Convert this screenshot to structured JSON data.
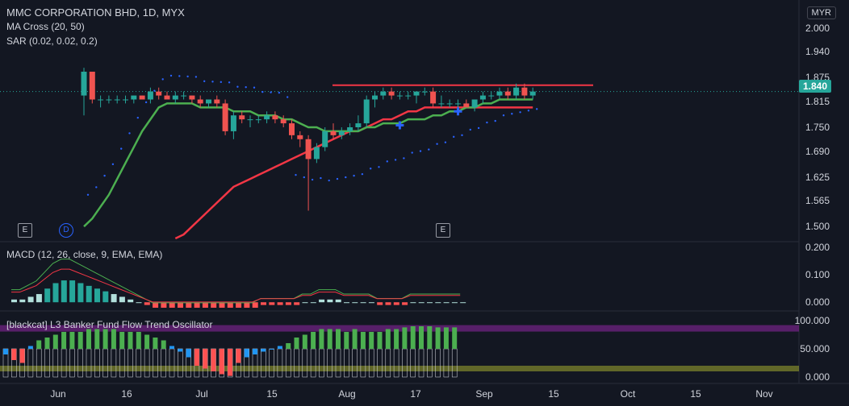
{
  "header": {
    "title": "MMC CORPORATION BHD, 1D, MYX",
    "ind1": "MA Cross (20, 50)",
    "ind2": "SAR (0.02, 0.02, 0.2)",
    "currency": "MYR",
    "last_price": "1.840"
  },
  "macd_label": "MACD (12, 26, close, 9, EMA, EMA)",
  "osc_label": "[blackcat] L3 Banker Fund Flow Trend Oscillator",
  "price_axis": [
    "2.000",
    "1.940",
    "1.875",
    "1.815",
    "1.750",
    "1.690",
    "1.625",
    "1.565",
    "1.500"
  ],
  "macd_axis": [
    "0.200",
    "0.100",
    "0.000"
  ],
  "osc_axis": [
    "100.000",
    "50.000",
    "0.000"
  ],
  "time_axis": [
    "Jun",
    "16",
    "Jul",
    "15",
    "Aug",
    "17",
    "Sep",
    "15",
    "Oct",
    "15",
    "Nov"
  ],
  "badges": [
    "E",
    "D",
    "E"
  ],
  "colors": {
    "up": "#26a69a",
    "down": "#ef5350",
    "ma_fast": "#4caf50",
    "ma_slow": "#f23645",
    "sar": "#2962ff",
    "hline": "#f23645"
  },
  "chart_data": {
    "type": "candlestick",
    "price_ylim": [
      1.47,
      2.03
    ],
    "resistance": 1.856,
    "candles": [
      [
        1.83,
        1.9,
        1.78,
        1.89
      ],
      [
        1.89,
        1.89,
        1.81,
        1.82
      ],
      [
        1.82,
        1.83,
        1.8,
        1.82
      ],
      [
        1.82,
        1.83,
        1.81,
        1.82
      ],
      [
        1.82,
        1.83,
        1.81,
        1.82
      ],
      [
        1.82,
        1.83,
        1.81,
        1.82
      ],
      [
        1.82,
        1.83,
        1.81,
        1.83
      ],
      [
        1.83,
        1.83,
        1.82,
        1.82
      ],
      [
        1.82,
        1.85,
        1.81,
        1.84
      ],
      [
        1.84,
        1.85,
        1.82,
        1.83
      ],
      [
        1.83,
        1.84,
        1.82,
        1.82
      ],
      [
        1.82,
        1.84,
        1.81,
        1.83
      ],
      [
        1.83,
        1.84,
        1.82,
        1.83
      ],
      [
        1.83,
        1.83,
        1.81,
        1.82
      ],
      [
        1.82,
        1.83,
        1.8,
        1.81
      ],
      [
        1.81,
        1.82,
        1.8,
        1.82
      ],
      [
        1.82,
        1.83,
        1.8,
        1.81
      ],
      [
        1.81,
        1.82,
        1.73,
        1.74
      ],
      [
        1.74,
        1.79,
        1.72,
        1.78
      ],
      [
        1.78,
        1.79,
        1.76,
        1.77
      ],
      [
        1.77,
        1.78,
        1.75,
        1.77
      ],
      [
        1.77,
        1.78,
        1.76,
        1.77
      ],
      [
        1.77,
        1.79,
        1.76,
        1.78
      ],
      [
        1.78,
        1.79,
        1.76,
        1.77
      ],
      [
        1.77,
        1.78,
        1.75,
        1.76
      ],
      [
        1.76,
        1.77,
        1.72,
        1.73
      ],
      [
        1.73,
        1.74,
        1.7,
        1.72
      ],
      [
        1.72,
        1.73,
        1.54,
        1.67
      ],
      [
        1.67,
        1.71,
        1.66,
        1.7
      ],
      [
        1.7,
        1.75,
        1.69,
        1.74
      ],
      [
        1.74,
        1.76,
        1.72,
        1.73
      ],
      [
        1.73,
        1.75,
        1.72,
        1.74
      ],
      [
        1.74,
        1.76,
        1.73,
        1.75
      ],
      [
        1.75,
        1.78,
        1.74,
        1.76
      ],
      [
        1.76,
        1.83,
        1.75,
        1.82
      ],
      [
        1.82,
        1.84,
        1.8,
        1.83
      ],
      [
        1.83,
        1.85,
        1.82,
        1.84
      ],
      [
        1.84,
        1.85,
        1.82,
        1.83
      ],
      [
        1.83,
        1.84,
        1.82,
        1.83
      ],
      [
        1.83,
        1.84,
        1.82,
        1.83
      ],
      [
        1.83,
        1.84,
        1.81,
        1.84
      ],
      [
        1.84,
        1.85,
        1.83,
        1.84
      ],
      [
        1.84,
        1.85,
        1.8,
        1.81
      ],
      [
        1.81,
        1.83,
        1.8,
        1.81
      ],
      [
        1.81,
        1.82,
        1.8,
        1.81
      ],
      [
        1.81,
        1.82,
        1.8,
        1.81
      ],
      [
        1.81,
        1.82,
        1.8,
        1.8
      ],
      [
        1.8,
        1.82,
        1.79,
        1.82
      ],
      [
        1.82,
        1.84,
        1.81,
        1.83
      ],
      [
        1.83,
        1.84,
        1.82,
        1.83
      ],
      [
        1.83,
        1.85,
        1.82,
        1.84
      ],
      [
        1.84,
        1.85,
        1.82,
        1.83
      ],
      [
        1.83,
        1.86,
        1.82,
        1.85
      ],
      [
        1.85,
        1.86,
        1.82,
        1.83
      ],
      [
        1.83,
        1.85,
        1.82,
        1.84
      ]
    ],
    "ma_fast": [
      1.5,
      1.52,
      1.55,
      1.58,
      1.62,
      1.66,
      1.7,
      1.74,
      1.77,
      1.8,
      1.81,
      1.81,
      1.81,
      1.81,
      1.8,
      1.8,
      1.8,
      1.8,
      1.79,
      1.79,
      1.79,
      1.78,
      1.78,
      1.78,
      1.77,
      1.77,
      1.76,
      1.75,
      1.75,
      1.74,
      1.74,
      1.74,
      1.74,
      1.74,
      1.75,
      1.75,
      1.76,
      1.76,
      1.76,
      1.77,
      1.77,
      1.77,
      1.78,
      1.78,
      1.79,
      1.79,
      1.8,
      1.8,
      1.81,
      1.81,
      1.82,
      1.82,
      1.82,
      1.82,
      1.82
    ],
    "ma_slow": [
      null,
      null,
      null,
      null,
      null,
      null,
      null,
      null,
      null,
      null,
      null,
      1.47,
      1.48,
      1.5,
      1.52,
      1.54,
      1.56,
      1.58,
      1.6,
      1.61,
      1.62,
      1.63,
      1.64,
      1.65,
      1.66,
      1.67,
      1.68,
      1.69,
      1.7,
      1.71,
      1.72,
      1.73,
      1.74,
      1.74,
      1.75,
      1.76,
      1.77,
      1.77,
      1.78,
      1.79,
      1.79,
      1.8,
      1.8,
      1.8,
      1.8,
      1.8,
      1.8,
      1.8,
      1.8,
      1.8,
      1.8,
      1.8,
      1.8,
      1.8,
      1.8
    ],
    "macd_ylim": [
      -0.02,
      0.21
    ],
    "macd_hist": [
      0.01,
      0.01,
      0.02,
      0.03,
      0.05,
      0.07,
      0.08,
      0.08,
      0.07,
      0.06,
      0.05,
      0.04,
      0.03,
      0.02,
      0.01,
      0.0,
      -0.01,
      -0.02,
      -0.02,
      -0.02,
      -0.02,
      -0.02,
      -0.02,
      -0.02,
      -0.02,
      -0.02,
      -0.02,
      -0.02,
      -0.02,
      -0.02,
      -0.01,
      -0.01,
      -0.01,
      -0.01,
      -0.01,
      0.0,
      0.0,
      0.01,
      0.01,
      0.01,
      0.0,
      0.0,
      0.0,
      0.0,
      -0.01,
      -0.01,
      -0.01,
      -0.01,
      0.0,
      0.0,
      0.0,
      0.0,
      0.0,
      0.0,
      0.0
    ],
    "osc_ylim": [
      0,
      100
    ],
    "osc_values": [
      40,
      30,
      25,
      55,
      65,
      70,
      75,
      80,
      80,
      80,
      85,
      85,
      85,
      85,
      80,
      80,
      80,
      75,
      70,
      65,
      55,
      45,
      35,
      20,
      15,
      10,
      5,
      2,
      25,
      35,
      40,
      45,
      50,
      55,
      60,
      70,
      75,
      80,
      85,
      85,
      85,
      80,
      85,
      80,
      80,
      80,
      85,
      85,
      88,
      90,
      90,
      90,
      88,
      88,
      88
    ]
  }
}
